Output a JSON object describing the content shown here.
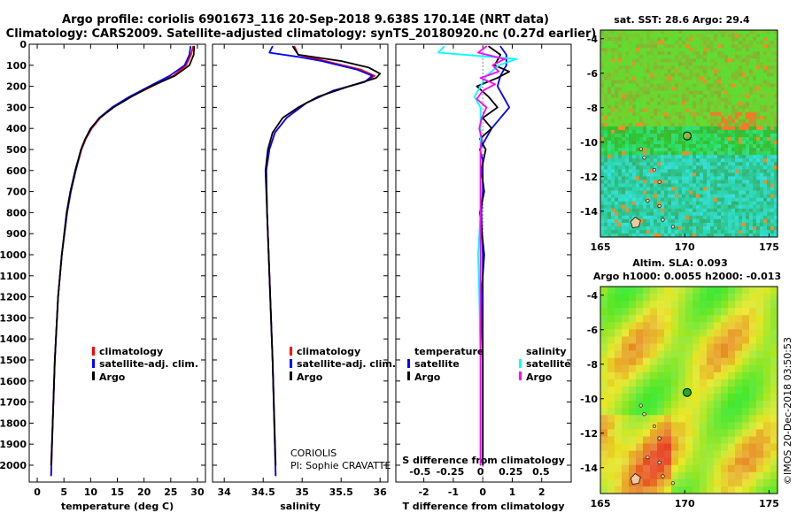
{
  "header": {
    "line1": "Argo profile: coriolis 6901673_116 20-Sep-2018 9.638S 170.14E (NRT data)",
    "line2": "Climatology: CARS2009. Satellite-adjusted climatology: synTS_20180920.nc (0.27d earlier)"
  },
  "colors": {
    "climatology": "#ff0000",
    "satellite": "#0000ff",
    "argo": "#000000",
    "sat_t_diff": "#00ffff",
    "argo_s_diff": "#ff00ff"
  },
  "legend": {
    "climatology": "climatology",
    "satellite": "satellite-adj. clim.",
    "argo": "Argo",
    "temperature": "temperature",
    "salinity": "salinity",
    "satellite_short": "satellite",
    "argo_short": "Argo"
  },
  "annotation": {
    "institution": "CORIOLIS",
    "pi": "PI: Sophie CRAVATTE"
  },
  "maps": {
    "sst_title": "sat. SST: 28.6 Argo: 29.4",
    "sla_title1": "Altim. SLA: 0.093",
    "sla_title2": "Argo h1000: 0.0055 h2000: -0.013",
    "xticks": [
      "165",
      "170",
      "175"
    ],
    "yticks": [
      "-4",
      "-6",
      "-8",
      "-10",
      "-12",
      "-14"
    ],
    "xrange": [
      165,
      175.5
    ],
    "yrange": [
      -15.5,
      -3.5
    ],
    "float_position": {
      "lon": 170.14,
      "lat": -9.638
    },
    "footer": "©IMOS 20-Dec-2018 03:50:53"
  },
  "chart_data": [
    {
      "type": "line",
      "xlabel": "temperature (deg C)",
      "ylabel": "",
      "xlim": [
        -1.5,
        31.5
      ],
      "ylim": [
        2080,
        0
      ],
      "xticks": [
        0,
        5,
        10,
        15,
        20,
        25,
        30
      ],
      "xtick_labels": [
        "0",
        "5",
        "10",
        "15",
        "20",
        "25",
        "30"
      ],
      "yticks": [
        0,
        100,
        200,
        300,
        400,
        500,
        600,
        700,
        800,
        900,
        1000,
        1100,
        1200,
        1300,
        1400,
        1500,
        1600,
        1700,
        1800,
        1900,
        2000
      ],
      "ytick_labels": [
        "0",
        "100",
        "200",
        "300",
        "400",
        "500",
        "600",
        "700",
        "800",
        "900",
        "1000",
        "1100",
        "1200",
        "1300",
        "1400",
        "1500",
        "1600",
        "1700",
        "1800",
        "1900",
        "2000"
      ],
      "series": [
        {
          "name": "climatology",
          "color": "#ff0000",
          "depth": [
            10,
            50,
            100,
            150,
            200,
            250,
            300,
            350,
            400,
            450,
            500,
            600,
            700,
            800,
            1000,
            1200,
            1500,
            1800,
            2050
          ],
          "values": [
            29.2,
            28.8,
            27.9,
            25.5,
            21.5,
            17.5,
            14.2,
            11.8,
            10.2,
            9.1,
            8.3,
            7.2,
            6.3,
            5.6,
            4.6,
            3.9,
            3.3,
            2.9,
            2.6
          ]
        },
        {
          "name": "satellite-adj. clim.",
          "color": "#0000ff",
          "depth": [
            10,
            50,
            100,
            150,
            200,
            250,
            300,
            350,
            400,
            450,
            500,
            600,
            700,
            800,
            1000,
            1200,
            1500,
            1800,
            2050
          ],
          "values": [
            28.7,
            28.5,
            27.6,
            24.8,
            21.0,
            17.2,
            14.0,
            11.6,
            10.1,
            9.0,
            8.2,
            7.2,
            6.3,
            5.6,
            4.6,
            3.9,
            3.3,
            2.9,
            2.6
          ]
        },
        {
          "name": "Argo",
          "color": "#000000",
          "depth": [
            10,
            50,
            100,
            150,
            200,
            250,
            300,
            350,
            400,
            450,
            500,
            600,
            700,
            800,
            1000,
            1200,
            1500,
            1800,
            2000
          ],
          "values": [
            29.4,
            29.3,
            28.5,
            25.8,
            21.3,
            17.6,
            14.3,
            11.7,
            10.0,
            9.0,
            8.2,
            7.1,
            6.2,
            5.5,
            4.6,
            3.9,
            3.3,
            2.9,
            2.6
          ]
        }
      ]
    },
    {
      "type": "line",
      "xlabel": "salinity",
      "ylabel": "",
      "xlim": [
        33.85,
        36.1
      ],
      "ylim": [
        2080,
        0
      ],
      "xticks": [
        34,
        34.5,
        35,
        35.5,
        36
      ],
      "xtick_labels": [
        "34",
        "34.5",
        "35",
        "35.5",
        "36"
      ],
      "series": [
        {
          "name": "climatology",
          "color": "#ff0000",
          "depth": [
            10,
            50,
            80,
            120,
            150,
            180,
            220,
            280,
            350,
            420,
            500,
            600,
            800,
            1000,
            1500,
            2050
          ],
          "values": [
            34.9,
            34.95,
            35.3,
            35.75,
            35.93,
            35.8,
            35.4,
            35.05,
            34.8,
            34.65,
            34.58,
            34.54,
            34.55,
            34.57,
            34.62,
            34.66
          ]
        },
        {
          "name": "satellite-adj. clim.",
          "color": "#0000ff",
          "depth": [
            10,
            40,
            60,
            80,
            120,
            150,
            180,
            220,
            280,
            350,
            420,
            500,
            600,
            800,
            1000,
            1500,
            2050
          ],
          "values": [
            34.62,
            34.58,
            34.95,
            35.25,
            35.7,
            35.9,
            35.8,
            35.4,
            35.05,
            34.8,
            34.65,
            34.58,
            34.54,
            34.55,
            34.57,
            34.62,
            34.66
          ]
        },
        {
          "name": "Argo",
          "color": "#000000",
          "depth": [
            10,
            50,
            80,
            110,
            140,
            160,
            200,
            250,
            300,
            350,
            420,
            500,
            600,
            800,
            1000,
            1500,
            2000
          ],
          "values": [
            34.88,
            34.95,
            35.5,
            35.85,
            36.0,
            35.95,
            35.6,
            35.2,
            34.95,
            34.75,
            34.62,
            34.56,
            34.53,
            34.55,
            34.57,
            34.62,
            34.66
          ]
        }
      ]
    },
    {
      "type": "line",
      "xlabel": "T difference from climatology",
      "xlabel_secondary": "S difference from climatology",
      "ylabel": "",
      "xlim": [
        -2.95,
        3.0
      ],
      "ylim": [
        2080,
        0
      ],
      "xticks": [
        -2,
        -1,
        0,
        1,
        2
      ],
      "xtick_labels": [
        "-2",
        "-1",
        "0",
        "1",
        "2"
      ],
      "xticks_secondary": [
        -0.5,
        -0.25,
        0,
        0.25,
        0.5
      ],
      "xtick_labels_secondary": [
        "-0.5",
        "-0.25",
        "0",
        "0.25",
        "0.5"
      ],
      "series": [
        {
          "name": "temperature satellite",
          "color": "#0000ff",
          "depth": [
            10,
            50,
            100,
            150,
            200,
            250,
            300,
            350,
            400,
            450,
            500,
            550,
            600,
            700,
            800,
            1000,
            1200,
            1500,
            2000
          ],
          "values": [
            0.6,
            0.8,
            0.8,
            0.6,
            0.5,
            0.7,
            0.9,
            0.6,
            0.3,
            0.1,
            -0.1,
            0.0,
            0.0,
            0.0,
            -0.05,
            0.0,
            0.0,
            0.0,
            0.0
          ]
        },
        {
          "name": "temperature Argo",
          "color": "#000000",
          "depth": [
            10,
            50,
            100,
            130,
            160,
            200,
            250,
            300,
            350,
            400,
            450,
            500,
            600,
            700,
            800,
            1000,
            1200,
            1500,
            2000
          ],
          "values": [
            0.2,
            0.6,
            0.4,
            0.9,
            0.5,
            -0.2,
            0.2,
            0.5,
            0.0,
            0.3,
            -0.1,
            0.1,
            -0.05,
            0.05,
            -0.1,
            0.05,
            -0.05,
            0.0,
            0.0
          ]
        },
        {
          "name": "salinity satellite",
          "color": "#00ffff",
          "depth": [
            10,
            40,
            70,
            100,
            150,
            200,
            250,
            300,
            350,
            400,
            450,
            500,
            600,
            800,
            1000,
            1200,
            1500,
            2000
          ],
          "values": [
            -0.3,
            -0.35,
            0.3,
            0.15,
            0.05,
            0.0,
            -0.05,
            0.0,
            0.0,
            0.0,
            0.0,
            0.0,
            0.0,
            0.0,
            -0.02,
            -0.01,
            0.0,
            0.0
          ]
        },
        {
          "name": "salinity Argo",
          "color": "#ff00ff",
          "depth": [
            10,
            40,
            70,
            100,
            130,
            160,
            190,
            220,
            260,
            300,
            350,
            400,
            450,
            500,
            600,
            800,
            1000,
            1500,
            2000
          ],
          "values": [
            0.05,
            -0.02,
            0.2,
            0.1,
            0.15,
            0.0,
            0.12,
            0.02,
            -0.03,
            0.05,
            0.01,
            -0.01,
            0.01,
            0.0,
            0.0,
            0.0,
            0.0,
            0.0,
            0.0
          ]
        }
      ]
    }
  ]
}
